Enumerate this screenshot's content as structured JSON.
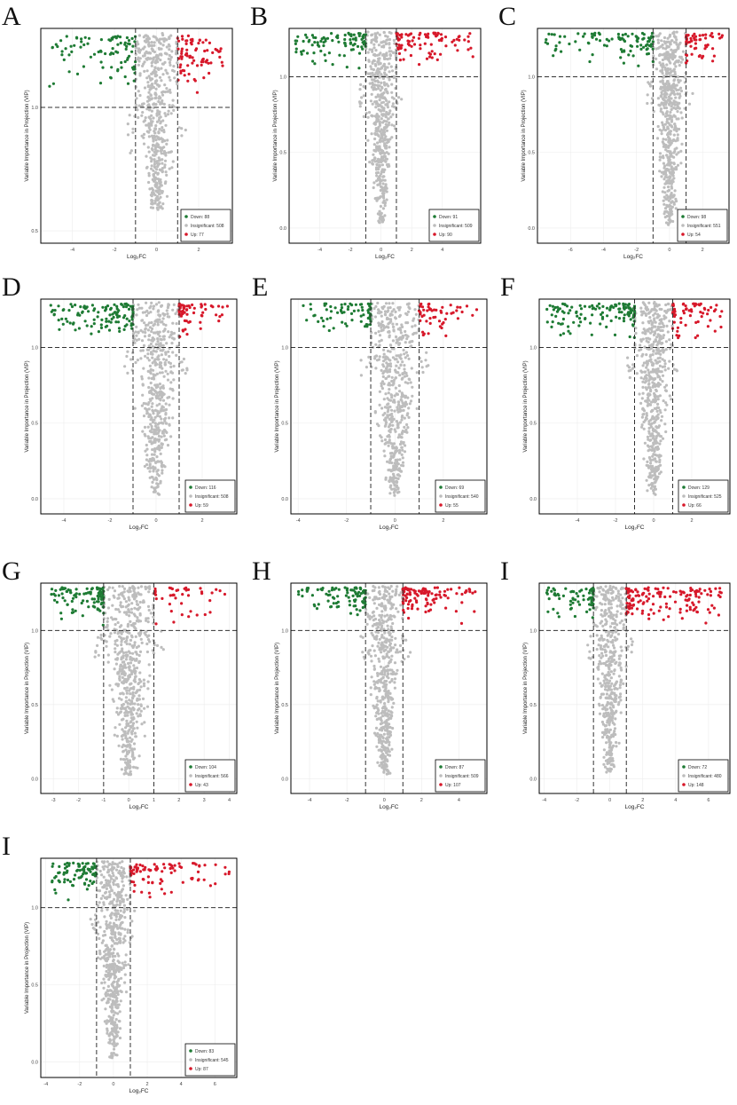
{
  "colors": {
    "down": "#1e7b34",
    "insig": "#bdbdbd",
    "up": "#d7182a",
    "axis": "#000000",
    "grid": "#ececec"
  },
  "common": {
    "xlabel": "Log₂FC",
    "ylabel": "Variable Importance in Projection (VIP)",
    "vip_threshold": 1.0,
    "fc_threshold": [
      -1,
      1
    ]
  },
  "chart_data": [
    {
      "type": "scatter",
      "panel": "A",
      "xlim": [
        -5.5,
        3.6
      ],
      "ylim": [
        0.45,
        1.32
      ],
      "xticks": [
        -4,
        -2,
        0,
        2
      ],
      "yticks": [
        0.5,
        1.0
      ],
      "legend": {
        "position": "bottom-right",
        "entries": [
          "Down: 88",
          "Insignificant: 508",
          "Up: 77"
        ]
      },
      "counts": [
        88,
        508,
        77
      ]
    },
    {
      "type": "scatter",
      "panel": "B",
      "xlim": [
        -6,
        6.5
      ],
      "ylim": [
        -0.1,
        1.32
      ],
      "xticks": [
        -4,
        -2,
        0,
        2,
        4
      ],
      "yticks": [
        0.0,
        0.5,
        1.0
      ],
      "legend": {
        "position": "bottom-right",
        "entries": [
          "Down: 91",
          "Insignificant: 509",
          "Up: 90"
        ]
      },
      "counts": [
        91,
        509,
        90
      ]
    },
    {
      "type": "scatter",
      "panel": "C",
      "xlim": [
        -8,
        3.6
      ],
      "ylim": [
        -0.1,
        1.32
      ],
      "xticks": [
        -6,
        -4,
        -2,
        0,
        2
      ],
      "yticks": [
        0.0,
        0.5,
        1.0
      ],
      "legend": {
        "position": "bottom-right",
        "entries": [
          "Down: 98",
          "Insignificant: 551",
          "Up: 54"
        ]
      },
      "counts": [
        98,
        551,
        54
      ]
    },
    {
      "type": "scatter",
      "panel": "D",
      "xlim": [
        -5,
        3.5
      ],
      "ylim": [
        -0.1,
        1.32
      ],
      "xticks": [
        -4,
        -2,
        0,
        2
      ],
      "yticks": [
        0.0,
        0.5,
        1.0
      ],
      "legend": {
        "position": "bottom-right",
        "entries": [
          "Down: 116",
          "Insignificant: 508",
          "Up: 59"
        ]
      },
      "counts": [
        116,
        508,
        59
      ]
    },
    {
      "type": "scatter",
      "panel": "E",
      "xlim": [
        -4.3,
        3.8
      ],
      "ylim": [
        -0.1,
        1.32
      ],
      "xticks": [
        -4,
        -2,
        0,
        2
      ],
      "yticks": [
        0.0,
        0.5,
        1.0
      ],
      "legend": {
        "position": "bottom-right",
        "entries": [
          "Down: 69",
          "Insignificant: 540",
          "Up: 55"
        ]
      },
      "counts": [
        69,
        540,
        55
      ]
    },
    {
      "type": "scatter",
      "panel": "F",
      "xlim": [
        -6,
        4
      ],
      "ylim": [
        -0.1,
        1.32
      ],
      "xticks": [
        -4,
        -2,
        0,
        2
      ],
      "yticks": [
        0.0,
        0.5,
        1.0
      ],
      "legend": {
        "position": "bottom-right",
        "entries": [
          "Down: 129",
          "Insignificant: 525",
          "Up: 66"
        ]
      },
      "counts": [
        129,
        525,
        66
      ]
    },
    {
      "type": "scatter",
      "panel": "G",
      "xlim": [
        -3.5,
        4.3
      ],
      "ylim": [
        -0.1,
        1.32
      ],
      "xticks": [
        -3,
        -2,
        -1,
        0,
        1,
        2,
        3,
        4
      ],
      "yticks": [
        0.0,
        0.5,
        1.0
      ],
      "legend": {
        "position": "bottom-right",
        "entries": [
          "Down: 104",
          "Insignificant: 566",
          "Up: 43"
        ]
      },
      "counts": [
        104,
        566,
        43
      ]
    },
    {
      "type": "scatter",
      "panel": "H",
      "xlim": [
        -5,
        5.5
      ],
      "ylim": [
        -0.1,
        1.32
      ],
      "xticks": [
        -4,
        -2,
        0,
        2,
        4
      ],
      "yticks": [
        0.0,
        0.5,
        1.0
      ],
      "legend": {
        "position": "bottom-right",
        "entries": [
          "Down: 87",
          "Insignificant: 509",
          "Up: 107"
        ]
      },
      "counts": [
        87,
        509,
        107
      ]
    },
    {
      "type": "scatter",
      "panel": "I",
      "xlim": [
        -4.3,
        7.3
      ],
      "ylim": [
        -0.1,
        1.32
      ],
      "xticks": [
        -4,
        -2,
        0,
        2,
        4,
        6
      ],
      "yticks": [
        0.0,
        0.5,
        1.0
      ],
      "legend": {
        "position": "bottom-right",
        "entries": [
          "Down: 72",
          "Insignificant: 480",
          "Up: 148"
        ]
      },
      "counts": [
        72,
        480,
        148
      ]
    },
    {
      "type": "scatter",
      "panel": "I",
      "xlim": [
        -4.3,
        7.3
      ],
      "ylim": [
        -0.1,
        1.32
      ],
      "xticks": [
        -4,
        -2,
        0,
        2,
        4,
        6
      ],
      "yticks": [
        0.0,
        0.5,
        1.0
      ],
      "legend": {
        "position": "bottom-right",
        "entries": [
          "Down: 83",
          "Insignificant: 545",
          "Up: 87"
        ]
      },
      "counts": [
        83,
        545,
        87
      ]
    }
  ]
}
